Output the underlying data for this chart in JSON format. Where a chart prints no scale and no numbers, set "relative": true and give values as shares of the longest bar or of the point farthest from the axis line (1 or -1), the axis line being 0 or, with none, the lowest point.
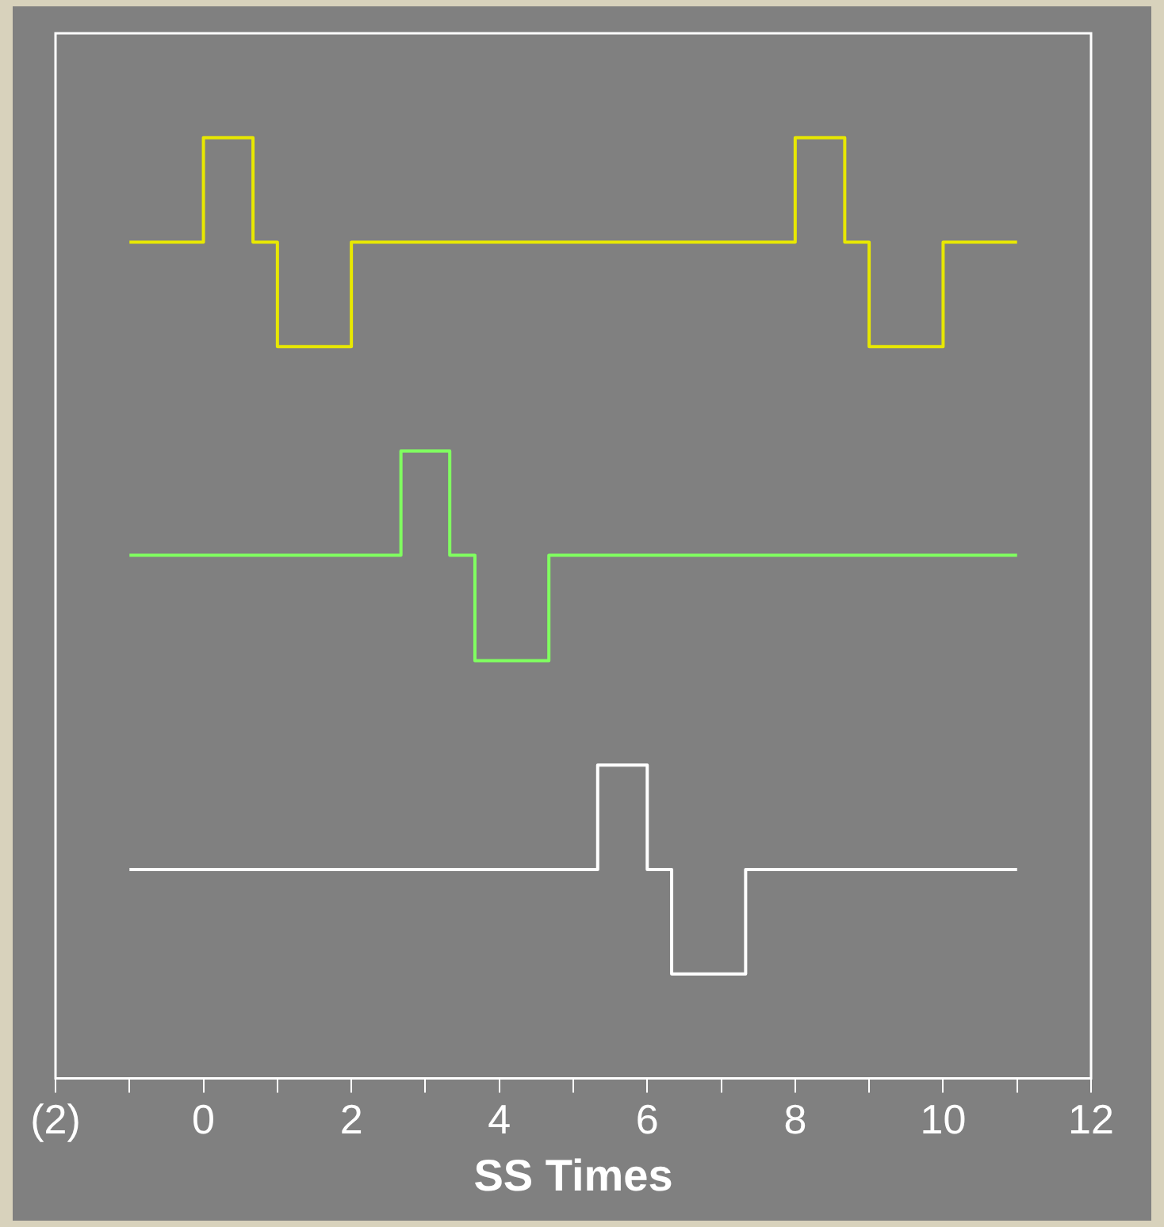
{
  "chart_data": {
    "type": "step",
    "xlabel": "SS Times",
    "relative": true,
    "marker": "none",
    "xlim": [
      -2,
      12
    ],
    "xticks": [
      {
        "value": -2,
        "label": "(2)"
      },
      {
        "value": -1,
        "label": null
      },
      0,
      {
        "value": 1,
        "label": null
      },
      2,
      {
        "value": 3,
        "label": null
      },
      4,
      {
        "value": 5,
        "label": null
      },
      6,
      {
        "value": 7,
        "label": null
      },
      8,
      {
        "value": 9,
        "label": null
      },
      10,
      {
        "value": 11,
        "label": null
      },
      12
    ],
    "series": [
      {
        "color": "#e8e800",
        "x": [
          -1,
          0,
          0.67,
          1,
          2,
          8,
          8.67,
          9,
          10,
          11
        ],
        "values": [
          0.889,
          1,
          0.889,
          0.778,
          0.889,
          1,
          0.889,
          0.778,
          0.889,
          0.889
        ]
      },
      {
        "color": "#80ff60",
        "x": [
          -1,
          2.67,
          3.33,
          3.67,
          4.67,
          11
        ],
        "values": [
          0.556,
          0.667,
          0.556,
          0.444,
          0.556,
          0.556
        ]
      },
      {
        "color": "#ffffff",
        "x": [
          -1,
          5.33,
          6,
          6.33,
          7.33,
          11
        ],
        "values": [
          0.222,
          0.333,
          0.222,
          0.111,
          0.222,
          0.222
        ]
      }
    ]
  }
}
